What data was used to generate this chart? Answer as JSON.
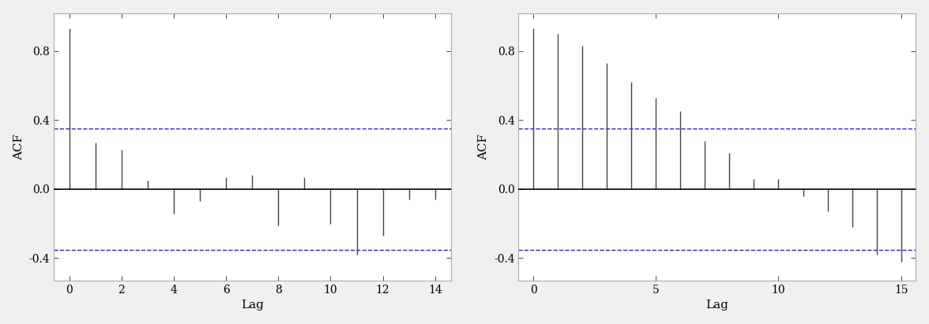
{
  "left": {
    "lags": [
      0,
      1,
      2,
      3,
      4,
      5,
      6,
      7,
      8,
      9,
      10,
      11,
      12,
      13,
      14
    ],
    "acf": [
      0.93,
      0.27,
      0.23,
      0.05,
      -0.14,
      -0.07,
      0.07,
      0.08,
      -0.21,
      0.07,
      -0.2,
      -0.38,
      -0.27,
      -0.06,
      -0.06
    ],
    "conf": 0.35,
    "xlabel": "Lag",
    "ylabel": "ACF",
    "xlim": [
      -0.6,
      14.6
    ],
    "ylim": [
      -0.53,
      1.02
    ],
    "xticks": [
      0,
      2,
      4,
      6,
      8,
      10,
      12,
      14
    ],
    "yticks": [
      -0.4,
      0.0,
      0.4,
      0.8
    ]
  },
  "right": {
    "lags": [
      0,
      1,
      2,
      3,
      4,
      5,
      6,
      7,
      8,
      9,
      10,
      11,
      12,
      13,
      14,
      15
    ],
    "acf": [
      0.93,
      0.9,
      0.83,
      0.73,
      0.62,
      0.53,
      0.45,
      0.28,
      0.21,
      0.06,
      0.06,
      -0.04,
      -0.13,
      -0.22,
      -0.38,
      -0.42
    ],
    "conf": 0.35,
    "xlabel": "Lag",
    "ylabel": "ACF",
    "xlim": [
      -0.6,
      15.6
    ],
    "ylim": [
      -0.53,
      1.02
    ],
    "xticks": [
      0,
      5,
      10,
      15
    ],
    "yticks": [
      -0.4,
      0.0,
      0.4,
      0.8
    ]
  },
  "bar_color": "#444444",
  "conf_color": "#2222BB",
  "zero_line_color": "#000000",
  "plot_bg_color": "#ffffff",
  "fig_bg_color": "#f0f0f0",
  "spine_color": "#aaaaaa",
  "tick_color": "#444444",
  "label_fontsize": 11,
  "tick_fontsize": 10
}
